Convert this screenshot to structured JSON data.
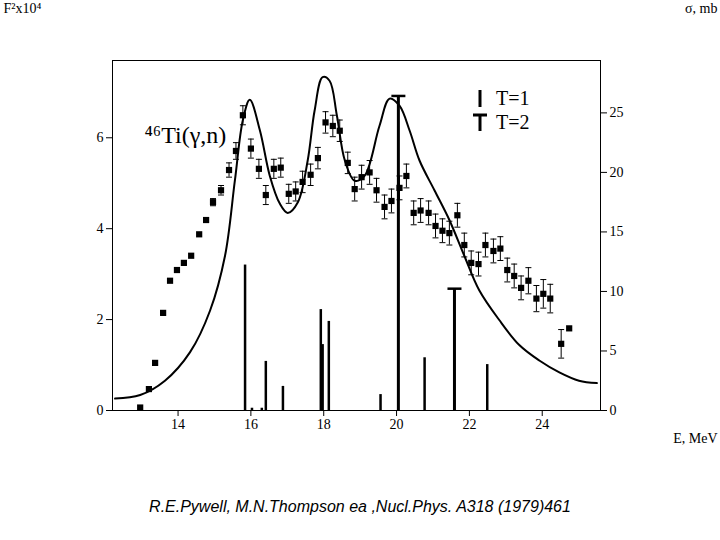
{
  "chart_data": {
    "type": "scatter",
    "title": "⁴⁶Ti(γ,n)",
    "x_label": "E, MeV",
    "y_label": "F²x10⁴",
    "y2_label": "σ, mb",
    "caption": "R.E.Pywell, M.N.Thompson  ea ,Nucl.Phys. A318 (1979)461",
    "xlim": [
      12.2,
      25.6
    ],
    "xticks": [
      14,
      16,
      18,
      20,
      22,
      24
    ],
    "ylim": [
      0,
      7.7
    ],
    "yticks": [
      0,
      2,
      4,
      6
    ],
    "y2lim": [
      0,
      29.4
    ],
    "y2ticks": [
      0,
      5,
      10,
      15,
      20,
      25
    ],
    "legend": "top-right",
    "series": [
      {
        "type": "scatter",
        "axis": "y2",
        "marker": "square",
        "color": "#000000",
        "x": [
          12.96,
          13.2,
          13.37,
          13.59,
          13.78,
          13.97,
          14.16,
          14.36,
          14.58,
          14.77,
          14.96,
          15.18,
          15.4,
          15.59,
          15.78,
          16.0,
          16.22,
          16.41,
          16.63,
          16.82,
          17.04,
          17.23,
          17.42,
          17.64,
          17.84,
          18.05,
          18.25,
          18.44,
          18.66,
          18.85,
          19.04,
          19.26,
          19.45,
          19.67,
          19.86,
          20.08,
          20.27,
          20.47,
          20.66,
          20.88,
          21.07,
          21.26,
          21.45,
          21.67,
          21.86,
          22.05,
          22.25,
          22.44,
          22.66,
          22.85,
          23.04,
          23.23,
          23.42,
          23.62,
          23.84,
          24.03,
          24.22,
          24.52,
          24.74
        ],
        "values": [
          0.25,
          1.8,
          4.0,
          8.2,
          10.9,
          11.8,
          12.4,
          13.0,
          14.8,
          16.0,
          17.5,
          18.5,
          20.2,
          21.8,
          24.8,
          22.0,
          20.3,
          18.1,
          20.3,
          20.4,
          18.2,
          18.4,
          19.2,
          19.8,
          21.2,
          24.2,
          23.9,
          23.5,
          20.8,
          18.6,
          19.6,
          20.0,
          18.5,
          17.1,
          17.6,
          18.7,
          19.7,
          16.6,
          16.8,
          16.6,
          15.5,
          15.1,
          14.9,
          16.4,
          13.9,
          12.4,
          12.3,
          13.9,
          13.4,
          13.6,
          11.8,
          11.3,
          10.3,
          10.9,
          9.4,
          9.8,
          9.4,
          5.6,
          6.9
        ],
        "errors": [
          0,
          0,
          0,
          0,
          0,
          0,
          0,
          0,
          0,
          0,
          0.3,
          0.4,
          0.6,
          0.7,
          0.8,
          0.8,
          0.8,
          0.8,
          0.8,
          0.8,
          0.8,
          0.8,
          0.9,
          0.9,
          0.9,
          0.9,
          0.9,
          0.9,
          0.9,
          1.0,
          1.0,
          1.0,
          1.0,
          1.0,
          1.0,
          1.0,
          1.0,
          1.0,
          1.0,
          1.0,
          1.0,
          1.0,
          1.0,
          1.0,
          1.0,
          1.0,
          1.0,
          1.0,
          1.0,
          1.0,
          1.0,
          1.0,
          1.0,
          1.1,
          1.1,
          1.2,
          1.2,
          1.2,
          0
        ]
      },
      {
        "type": "line",
        "axis": "y2",
        "line_style": "solid",
        "color": "#000000",
        "x": [
          12.27,
          12.96,
          13.64,
          14.33,
          14.88,
          15.29,
          15.56,
          15.78,
          15.97,
          16.25,
          16.52,
          16.79,
          17.01,
          17.29,
          17.56,
          17.75,
          17.97,
          18.16,
          18.36,
          18.58,
          18.85,
          19.12,
          19.53,
          19.81,
          20.08,
          20.36,
          20.63,
          21.04,
          21.45,
          21.86,
          22.27,
          22.82,
          23.37,
          23.92,
          24.47,
          25.01,
          25.5
        ],
        "values": [
          1.0,
          1.3,
          2.5,
          4.9,
          8.4,
          13.0,
          19.3,
          24.4,
          26.1,
          23.5,
          19.7,
          17.4,
          16.6,
          17.5,
          21.0,
          25.2,
          28.0,
          27.7,
          24.8,
          21.0,
          19.3,
          19.7,
          23.9,
          26.2,
          25.6,
          23.5,
          21.0,
          18.5,
          16.0,
          13.0,
          10.1,
          7.6,
          5.5,
          4.2,
          3.2,
          2.5,
          2.3
        ]
      },
      {
        "name": "T=1",
        "type": "bar",
        "color": "#000000",
        "x": [
          15.84,
          16.03,
          16.3,
          16.41,
          16.88,
          17.92,
          17.97,
          18.14,
          19.56,
          20.77,
          22.49
        ],
        "values": [
          3.2,
          0.05,
          0.05,
          1.08,
          0.53,
          2.22,
          1.45,
          1.96,
          0.35,
          1.16,
          1.01
        ]
      },
      {
        "name": "T=2",
        "type": "bar",
        "marker": "cap",
        "color": "#000000",
        "x": [
          20.05,
          21.59
        ],
        "values": [
          6.92,
          2.68
        ]
      }
    ]
  }
}
